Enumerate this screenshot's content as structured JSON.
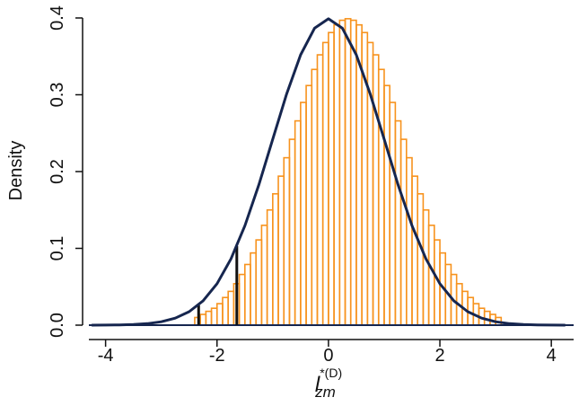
{
  "chart_data": {
    "type": "histogram",
    "ylabel": "Density",
    "xlabel": {
      "base": "l",
      "superscript": "*(D)",
      "subscript": "zm"
    },
    "xlim": [
      -4.3,
      4.4
    ],
    "ylim": [
      0,
      0.4
    ],
    "xticks": [
      -4,
      -2,
      0,
      2,
      4
    ],
    "yticks": [
      {
        "value": 0,
        "label": "0.0"
      },
      0.1,
      0.2,
      0.3,
      0.4
    ],
    "grid": false,
    "color": "#f7931e",
    "bins": [
      -2.4,
      -2.3,
      -2.2,
      -2.1,
      -2.0,
      -1.9,
      -1.8,
      -1.7,
      -1.6,
      -1.5,
      -1.4,
      -1.3,
      -1.2,
      -1.1,
      -1.0,
      -0.9,
      -0.8,
      -0.7,
      -0.6,
      -0.5,
      -0.4,
      -0.3,
      -0.2,
      -0.1,
      0.0,
      0.1,
      0.2,
      0.3,
      0.4,
      0.5,
      0.6,
      0.7,
      0.8,
      0.9,
      1.0,
      1.1,
      1.2,
      1.3,
      1.4,
      1.5,
      1.6,
      1.7,
      1.8,
      1.9,
      2.0,
      2.1,
      2.2,
      2.3,
      2.4,
      2.5,
      2.6,
      2.7,
      2.8,
      2.9,
      3.0,
      3.1
    ],
    "values": [
      0.01,
      0.014,
      0.018,
      0.022,
      0.028,
      0.036,
      0.044,
      0.054,
      0.066,
      0.079,
      0.094,
      0.111,
      0.13,
      0.15,
      0.171,
      0.194,
      0.218,
      0.242,
      0.266,
      0.29,
      0.312,
      0.333,
      0.352,
      0.368,
      0.381,
      0.391,
      0.397,
      0.399,
      0.397,
      0.391,
      0.381,
      0.368,
      0.352,
      0.333,
      0.312,
      0.29,
      0.266,
      0.242,
      0.218,
      0.194,
      0.171,
      0.15,
      0.13,
      0.111,
      0.094,
      0.079,
      0.066,
      0.054,
      0.044,
      0.036,
      0.028,
      0.022,
      0.018,
      0.014,
      0.01
    ],
    "curve": {
      "color": "#16264f",
      "x": [
        -4.25,
        -4.0,
        -3.75,
        -3.5,
        -3.25,
        -3.0,
        -2.75,
        -2.5,
        -2.25,
        -2.0,
        -1.75,
        -1.5,
        -1.25,
        -1.0,
        -0.75,
        -0.5,
        -0.25,
        0,
        0.25,
        0.5,
        0.75,
        1.0,
        1.25,
        1.5,
        1.75,
        2.0,
        2.25,
        2.5,
        2.75,
        3.0,
        3.25,
        3.5,
        3.75,
        4.0,
        4.25
      ],
      "values": [
        0.0,
        0.0001,
        0.0004,
        0.0009,
        0.002,
        0.0044,
        0.0091,
        0.0175,
        0.0317,
        0.054,
        0.0863,
        0.1295,
        0.1826,
        0.242,
        0.3011,
        0.3521,
        0.3867,
        0.3989,
        0.3867,
        0.3521,
        0.3011,
        0.242,
        0.1826,
        0.1295,
        0.0863,
        0.054,
        0.0317,
        0.0175,
        0.0091,
        0.0044,
        0.002,
        0.0009,
        0.0004,
        0.0001,
        0.0
      ]
    },
    "vlines": [
      {
        "x": -2.33,
        "height": 0.026
      },
      {
        "x": -1.645,
        "height": 0.103
      }
    ]
  }
}
